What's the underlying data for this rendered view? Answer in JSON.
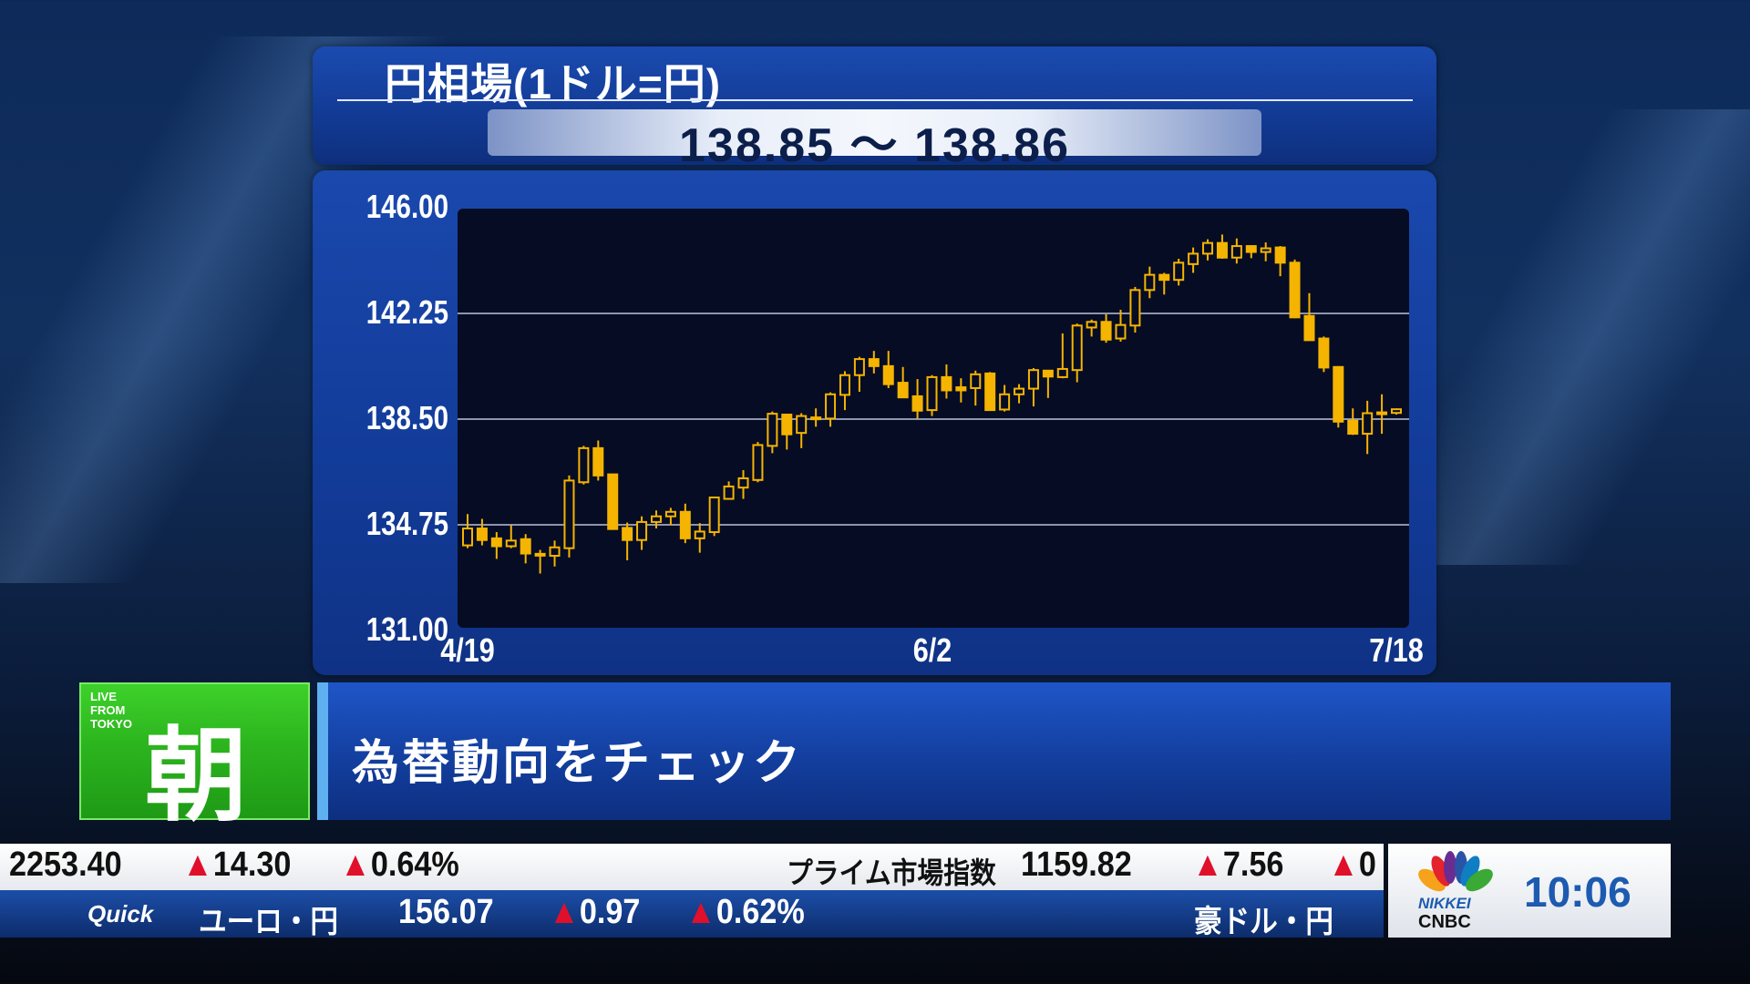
{
  "header": {
    "title": "円相場(1ドル=円)",
    "quote": "138.85 ～ 138.86"
  },
  "chart_data": {
    "type": "candlestick",
    "title": "円相場(1ドル=円)",
    "ylim": [
      131.0,
      146.0
    ],
    "y_ticks": [
      "146.00",
      "142.25",
      "138.50",
      "134.75",
      "131.00"
    ],
    "y_tick_values": [
      146.0,
      142.25,
      138.5,
      134.75,
      131.0
    ],
    "x_ticks": [
      {
        "index": 0,
        "label": "4/19"
      },
      {
        "index": 32,
        "label": "6/2"
      },
      {
        "index": 64,
        "label": "7/18"
      }
    ],
    "grid": "horizontal",
    "candle_color": "#f5b400",
    "candles_ohlc": [
      [
        134.02,
        135.13,
        133.92,
        134.62
      ],
      [
        134.62,
        134.96,
        134.02,
        134.21
      ],
      [
        134.27,
        134.49,
        133.54,
        133.99
      ],
      [
        133.99,
        134.73,
        133.92,
        134.19
      ],
      [
        134.24,
        134.42,
        133.38,
        133.73
      ],
      [
        133.72,
        133.86,
        133.02,
        133.67
      ],
      [
        133.65,
        134.19,
        133.27,
        133.95
      ],
      [
        133.92,
        136.5,
        133.59,
        136.32
      ],
      [
        136.26,
        137.55,
        136.18,
        137.47
      ],
      [
        137.47,
        137.74,
        136.32,
        136.5
      ],
      [
        136.54,
        136.56,
        134.57,
        134.6
      ],
      [
        134.64,
        134.83,
        133.49,
        134.21
      ],
      [
        134.21,
        135.05,
        133.86,
        134.85
      ],
      [
        134.85,
        135.26,
        134.62,
        135.05
      ],
      [
        135.05,
        135.35,
        134.73,
        135.21
      ],
      [
        135.21,
        135.5,
        134.1,
        134.27
      ],
      [
        134.27,
        134.81,
        133.76,
        134.51
      ],
      [
        134.49,
        135.75,
        134.35,
        135.72
      ],
      [
        135.67,
        136.29,
        135.64,
        136.11
      ],
      [
        136.07,
        136.69,
        135.67,
        136.4
      ],
      [
        136.34,
        137.69,
        136.26,
        137.58
      ],
      [
        137.55,
        138.77,
        137.29,
        138.69
      ],
      [
        138.66,
        138.69,
        137.42,
        137.96
      ],
      [
        138.01,
        138.71,
        137.47,
        138.61
      ],
      [
        138.55,
        138.88,
        138.23,
        138.56
      ],
      [
        138.52,
        139.45,
        138.23,
        139.38
      ],
      [
        139.36,
        140.2,
        138.82,
        140.06
      ],
      [
        140.06,
        140.71,
        139.47,
        140.63
      ],
      [
        140.63,
        140.92,
        140.12,
        140.38
      ],
      [
        140.38,
        140.92,
        139.6,
        139.74
      ],
      [
        139.79,
        140.35,
        139.25,
        139.27
      ],
      [
        139.31,
        139.92,
        138.52,
        138.8
      ],
      [
        138.82,
        140.06,
        138.61,
        139.99
      ],
      [
        139.99,
        140.44,
        139.23,
        139.52
      ],
      [
        139.63,
        139.95,
        139.09,
        139.52
      ],
      [
        139.6,
        140.22,
        138.98,
        140.09
      ],
      [
        140.12,
        140.17,
        138.8,
        138.82
      ],
      [
        138.84,
        139.71,
        138.77,
        139.38
      ],
      [
        139.38,
        139.74,
        139.06,
        139.58
      ],
      [
        139.58,
        140.31,
        138.95,
        140.24
      ],
      [
        140.22,
        140.24,
        139.25,
        140.01
      ],
      [
        139.99,
        141.54,
        139.95,
        140.28
      ],
      [
        140.24,
        141.89,
        139.81,
        141.82
      ],
      [
        141.75,
        142.03,
        141.43,
        141.95
      ],
      [
        141.95,
        142.22,
        141.21,
        141.32
      ],
      [
        141.36,
        142.38,
        141.25,
        141.84
      ],
      [
        141.82,
        143.19,
        141.57,
        143.08
      ],
      [
        143.08,
        143.91,
        142.79,
        143.62
      ],
      [
        143.62,
        143.69,
        142.92,
        143.44
      ],
      [
        143.44,
        144.19,
        143.24,
        144.05
      ],
      [
        144.0,
        144.59,
        143.69,
        144.37
      ],
      [
        144.37,
        144.88,
        144.13,
        144.75
      ],
      [
        144.75,
        145.05,
        144.19,
        144.23
      ],
      [
        144.23,
        144.91,
        144.02,
        144.64
      ],
      [
        144.64,
        144.64,
        144.21,
        144.43
      ],
      [
        144.43,
        144.77,
        144.1,
        144.56
      ],
      [
        144.59,
        144.64,
        143.57,
        144.05
      ],
      [
        144.05,
        144.16,
        142.08,
        142.11
      ],
      [
        142.16,
        142.97,
        141.28,
        141.3
      ],
      [
        141.36,
        141.43,
        140.17,
        140.33
      ],
      [
        140.35,
        140.38,
        138.2,
        138.41
      ],
      [
        138.44,
        138.88,
        137.94,
        137.98
      ],
      [
        137.98,
        139.15,
        137.26,
        138.71
      ],
      [
        138.71,
        139.38,
        137.98,
        138.74
      ],
      [
        138.72,
        138.88,
        138.66,
        138.85
      ]
    ]
  },
  "badge": {
    "small_text": [
      "LIVE",
      "FROM",
      "TOKYO"
    ],
    "kanji": "朝"
  },
  "headline": "為替動向をチェック",
  "ticker": {
    "top": {
      "value": "2253.40",
      "change": "14.30",
      "pct": "0.64%",
      "name2": "プライム市場指数",
      "value2": "1159.82",
      "change2": "7.56",
      "pct2_partial": "0"
    },
    "bottom": {
      "source_logo": "Quick",
      "name": "ユーロ・円",
      "value": "156.07",
      "change": "0.97",
      "pct": "0.62%",
      "name2": "豪ドル・円"
    },
    "up_symbol": "▲",
    "up_color": "#e0102a"
  },
  "logo": {
    "line1": "NIKKEI",
    "line2": "CNBC"
  },
  "clock": "10:06"
}
